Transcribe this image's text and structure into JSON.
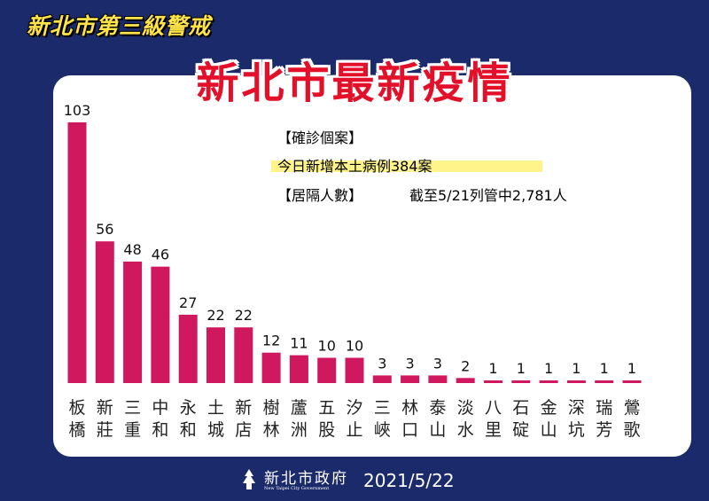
{
  "badge": "新北市第三級警戒",
  "title": "新北市最新疫情",
  "confirmed_header": "【確診個案】",
  "confirmed_text": "今日新增本土病例384案",
  "quarantine_header": "【居隔人數】",
  "quarantine_text": "截至5/21列管中2,781人",
  "footer": {
    "org": "新北市政府",
    "org_en": "New Taipei City Government",
    "date": "2021/5/22"
  },
  "colors": {
    "background": "#1b2a6b",
    "bar": "#d0185e",
    "title": "#e3102a",
    "badge": "#ffe34a",
    "highlight": "#fff48a"
  },
  "chart_data": {
    "type": "bar",
    "title": "",
    "xlabel": "",
    "ylabel": "",
    "categories": [
      "板橋",
      "新莊",
      "三重",
      "中和",
      "永和",
      "土城",
      "新店",
      "樹林",
      "蘆洲",
      "五股",
      "汐止",
      "三峽",
      "林口",
      "泰山",
      "淡水",
      "八里",
      "石碇",
      "金山",
      "深坑",
      "瑞芳",
      "鶯歌"
    ],
    "values": [
      103,
      56,
      48,
      46,
      27,
      22,
      22,
      12,
      11,
      10,
      10,
      3,
      3,
      3,
      2,
      1,
      1,
      1,
      1,
      1,
      1
    ],
    "ylim": [
      0,
      103
    ],
    "grid": false,
    "data_labels": true
  }
}
